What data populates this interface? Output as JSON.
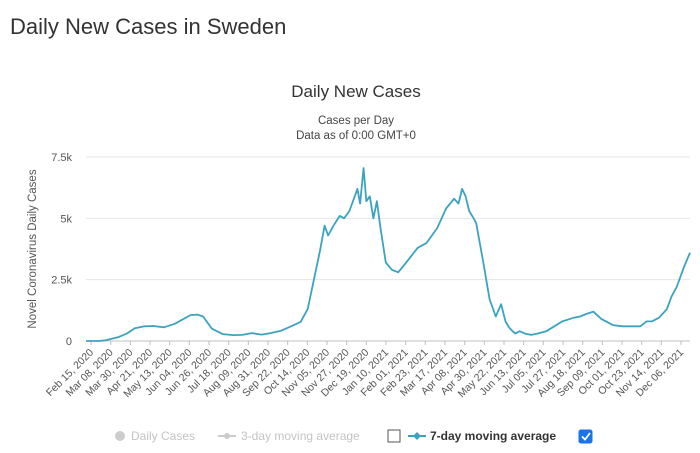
{
  "page": {
    "heading": "Daily New Cases in Sweden"
  },
  "chart_data": {
    "type": "line",
    "title": "Daily New Cases",
    "subtitle_lines": [
      "Cases per Day",
      "Data as of 0:00 GMT+0"
    ],
    "ylabel": "Novel Coronavirus Daily Cases",
    "ylim": [
      0,
      7500
    ],
    "yticks": [
      0,
      2500,
      5000,
      7500
    ],
    "ytick_labels": [
      "0",
      "2.5k",
      "5k",
      "7.5k"
    ],
    "x_tick_labels": [
      "Feb 15, 2020",
      "Mar 08, 2020",
      "Mar 30, 2020",
      "Apr 21, 2020",
      "May 13, 2020",
      "Jun 04, 2020",
      "Jun 26, 2020",
      "Jul 18, 2020",
      "Aug 09, 2020",
      "Aug 31, 2020",
      "Sep 22, 2020",
      "Oct 14, 2020",
      "Nov 05, 2020",
      "Nov 27, 2020",
      "Dec 19, 2020",
      "Jan 10, 2021",
      "Feb 01, 2021",
      "Feb 23, 2021",
      "Mar 17, 2021",
      "Apr 08, 2021",
      "Apr 30, 2021",
      "May 22, 2021",
      "Jun 13, 2021",
      "Jul 05, 2021",
      "Jul 27, 2021",
      "Aug 18, 2021",
      "Sep 09, 2021",
      "Oct 01, 2021",
      "Oct 23, 2021",
      "Nov 14, 2021",
      "Dec 06, 2021"
    ],
    "grid": true,
    "legend_position": "bottom",
    "series": [
      {
        "name": "7-day moving average",
        "color": "#3ba3c0",
        "x": [
          "2020-02-15",
          "2020-03-01",
          "2020-03-08",
          "2020-03-22",
          "2020-04-01",
          "2020-04-10",
          "2020-04-21",
          "2020-05-01",
          "2020-05-13",
          "2020-05-25",
          "2020-06-04",
          "2020-06-12",
          "2020-06-20",
          "2020-06-26",
          "2020-07-06",
          "2020-07-18",
          "2020-07-30",
          "2020-08-09",
          "2020-08-20",
          "2020-08-31",
          "2020-09-10",
          "2020-09-22",
          "2020-10-02",
          "2020-10-14",
          "2020-10-22",
          "2020-10-29",
          "2020-11-05",
          "2020-11-10",
          "2020-11-14",
          "2020-11-20",
          "2020-11-27",
          "2020-12-02",
          "2020-12-08",
          "2020-12-13",
          "2020-12-17",
          "2020-12-20",
          "2020-12-24",
          "2020-12-27",
          "2020-12-31",
          "2021-01-04",
          "2021-01-08",
          "2021-01-12",
          "2021-01-18",
          "2021-01-25",
          "2021-02-01",
          "2021-02-10",
          "2021-02-23",
          "2021-03-05",
          "2021-03-17",
          "2021-03-27",
          "2021-04-05",
          "2021-04-10",
          "2021-04-14",
          "2021-04-18",
          "2021-04-22",
          "2021-04-27",
          "2021-04-30",
          "2021-05-08",
          "2021-05-15",
          "2021-05-22",
          "2021-05-28",
          "2021-06-02",
          "2021-06-06",
          "2021-06-10",
          "2021-06-13",
          "2021-06-18",
          "2021-06-24",
          "2021-07-01",
          "2021-07-08",
          "2021-07-18",
          "2021-07-27",
          "2021-08-05",
          "2021-08-18",
          "2021-08-25",
          "2021-09-01",
          "2021-09-09",
          "2021-09-18",
          "2021-10-01",
          "2021-10-12",
          "2021-10-23",
          "2021-11-01",
          "2021-11-08",
          "2021-11-14",
          "2021-11-22",
          "2021-12-01",
          "2021-12-06",
          "2021-12-12",
          "2021-12-20",
          "2021-12-27"
        ],
        "values": [
          0,
          0,
          30,
          150,
          300,
          520,
          600,
          610,
          560,
          700,
          900,
          1060,
          1070,
          1000,
          500,
          280,
          240,
          250,
          320,
          260,
          320,
          420,
          580,
          780,
          1300,
          2500,
          3700,
          4700,
          4300,
          4700,
          5100,
          5000,
          5300,
          5800,
          6200,
          5600,
          7050,
          5700,
          5900,
          5000,
          5700,
          4600,
          3200,
          2900,
          2800,
          3200,
          3800,
          4000,
          4600,
          5400,
          5800,
          5600,
          6200,
          5900,
          5300,
          5000,
          4800,
          3200,
          1700,
          1000,
          1500,
          800,
          550,
          400,
          300,
          400,
          300,
          250,
          300,
          400,
          600,
          800,
          950,
          1000,
          1100,
          1200,
          900,
          650,
          600,
          600,
          600,
          800,
          800,
          950,
          1300,
          1800,
          2200,
          3000,
          3600
        ]
      }
    ],
    "legend": [
      {
        "label": "Daily Cases",
        "active": false,
        "color": "#cccccc"
      },
      {
        "label": "3-day moving average",
        "active": false,
        "color": "#cccccc"
      },
      {
        "label": "7-day moving average",
        "active": true,
        "color": "#3ba3c0"
      }
    ]
  }
}
